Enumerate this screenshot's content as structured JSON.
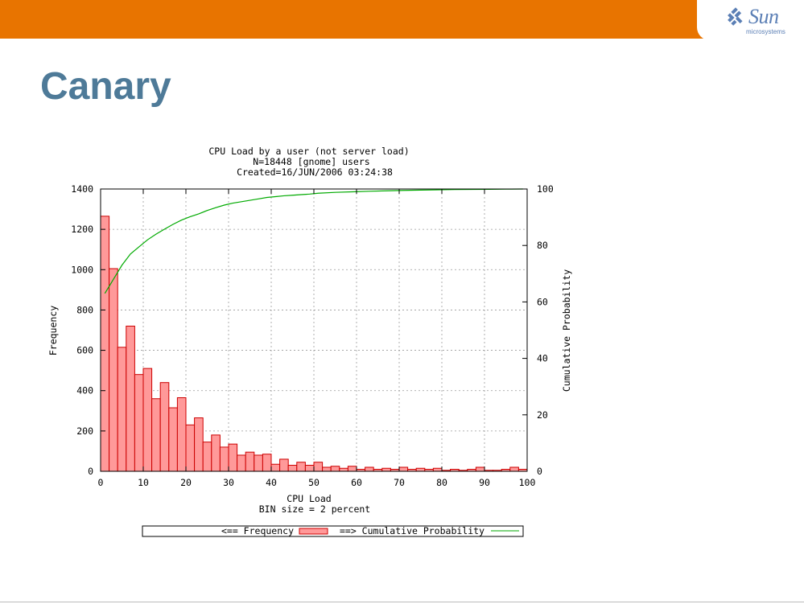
{
  "slide": {
    "title": "Canary",
    "logo": {
      "name": "Sun",
      "sub": "microsystems"
    },
    "colors": {
      "top_bar": "#e87400",
      "title": "#4e7a98",
      "logo": "#5b7fb5"
    }
  },
  "chart_data": {
    "type": "bar",
    "title_lines": [
      "CPU Load by a user (not server load)",
      "N=18448 [gnome]  users",
      "Created=16/JUN/2006 03:24:38"
    ],
    "xlabel_lines": [
      "CPU Load",
      "BIN size = 2 percent"
    ],
    "ylabel": "Frequency",
    "y2label": "Cumulative Probability",
    "xlim": [
      0,
      100
    ],
    "ylim": [
      0,
      1400
    ],
    "y2lim": [
      0,
      100
    ],
    "x_ticks": [
      0,
      10,
      20,
      30,
      40,
      50,
      60,
      70,
      80,
      90,
      100
    ],
    "y_ticks": [
      0,
      200,
      400,
      600,
      800,
      1000,
      1200,
      1400
    ],
    "y2_ticks": [
      0,
      20,
      40,
      60,
      80,
      100
    ],
    "grid": true,
    "legend_position": "bottom",
    "legend": {
      "frequency_label": "<== Frequency",
      "cumulative_label": "==> Cumulative Probability"
    },
    "series": [
      {
        "kind": "bar",
        "color": "#ff9999",
        "edge_color": "#cc0000",
        "bin_width": 2,
        "x": [
          0,
          2,
          4,
          6,
          8,
          10,
          12,
          14,
          16,
          18,
          20,
          22,
          24,
          26,
          28,
          30,
          32,
          34,
          36,
          38,
          40,
          42,
          44,
          46,
          48,
          50,
          52,
          54,
          56,
          58,
          60,
          62,
          64,
          66,
          68,
          70,
          72,
          74,
          76,
          78,
          80,
          82,
          84,
          86,
          88,
          90,
          92,
          94,
          96,
          98
        ],
        "values": [
          1265,
          1005,
          615,
          720,
          480,
          510,
          360,
          440,
          315,
          365,
          230,
          265,
          145,
          180,
          120,
          135,
          80,
          95,
          80,
          85,
          35,
          60,
          30,
          45,
          30,
          45,
          20,
          25,
          15,
          25,
          10,
          20,
          10,
          15,
          10,
          20,
          10,
          15,
          10,
          15,
          5,
          10,
          5,
          10,
          20,
          5,
          5,
          10,
          20,
          10
        ]
      },
      {
        "kind": "line",
        "color": "#00aa00",
        "x": [
          1,
          3,
          5,
          7,
          9,
          11,
          13,
          15,
          17,
          19,
          21,
          23,
          25,
          27,
          29,
          31,
          33,
          35,
          37,
          39,
          41,
          43,
          45,
          47,
          49,
          51,
          55,
          59,
          63,
          67,
          71,
          75,
          79,
          83,
          87,
          91,
          95,
          99
        ],
        "values": [
          63,
          68,
          73,
          77,
          79.5,
          82,
          84,
          85.8,
          87.5,
          89,
          90.2,
          91.2,
          92.4,
          93.4,
          94.3,
          95,
          95.5,
          96,
          96.5,
          97,
          97.3,
          97.6,
          97.8,
          98,
          98.2,
          98.5,
          98.8,
          99,
          99.2,
          99.35,
          99.5,
          99.6,
          99.7,
          99.8,
          99.85,
          99.9,
          99.95,
          100
        ]
      }
    ]
  }
}
